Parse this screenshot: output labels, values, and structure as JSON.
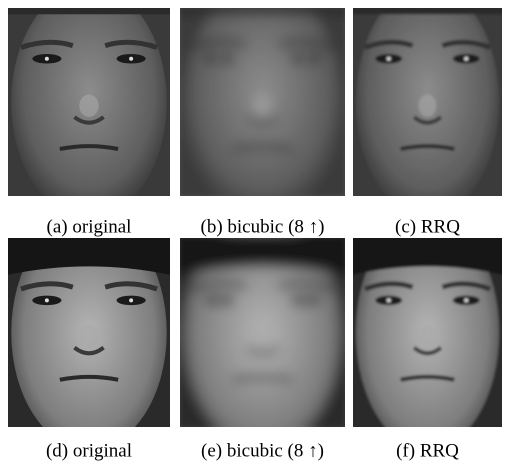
{
  "figure": {
    "panels": [
      {
        "caption": "(a) original"
      },
      {
        "caption": "(b) bicubic (8 ↑)"
      },
      {
        "caption": "(c) RRQ"
      },
      {
        "caption": "(d) original"
      },
      {
        "caption": "(e) bicubic (8 ↑)"
      },
      {
        "caption": "(f) RRQ"
      }
    ]
  }
}
